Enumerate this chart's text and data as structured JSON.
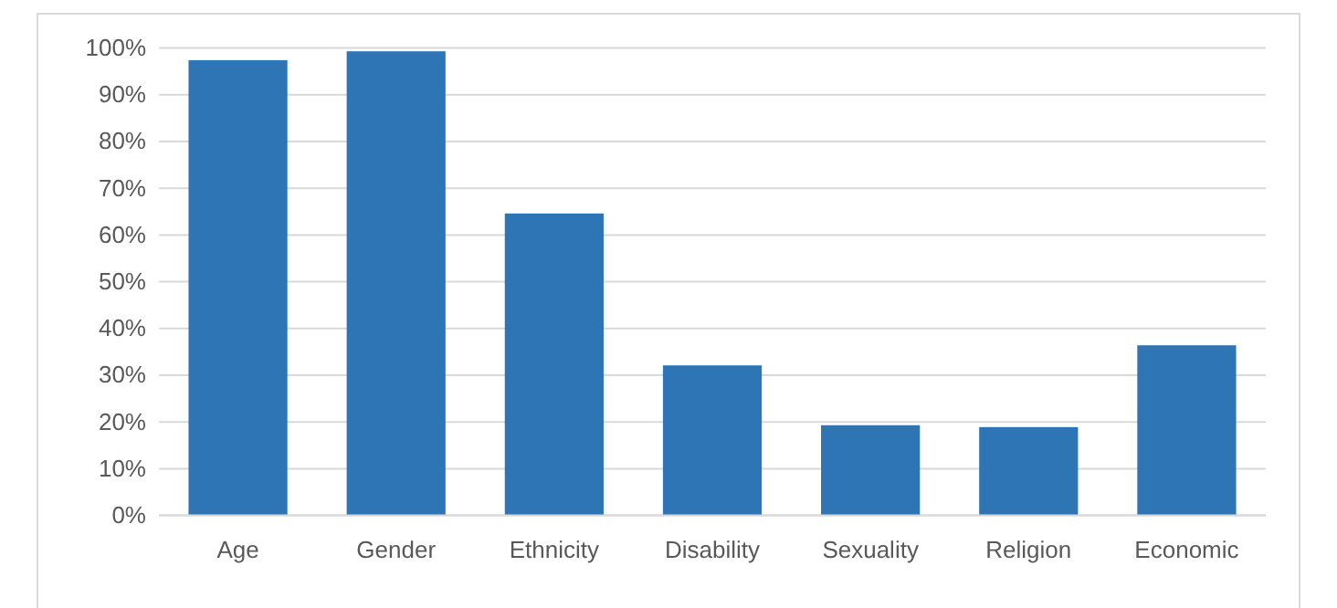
{
  "chart_data": {
    "type": "bar",
    "categories": [
      "Age",
      "Gender",
      "Ethnicity",
      "Disability",
      "Sexuality",
      "Religion",
      "Economic"
    ],
    "values": [
      97.4,
      99.3,
      64.6,
      32.1,
      19.3,
      18.9,
      36.4
    ],
    "color": "#2e75b6",
    "ylim": [
      0,
      100
    ],
    "yticks": [
      {
        "value": 0,
        "label": "0%"
      },
      {
        "value": 10,
        "label": "10%"
      },
      {
        "value": 20,
        "label": "20%"
      },
      {
        "value": 30,
        "label": "30%"
      },
      {
        "value": 40,
        "label": "40%"
      },
      {
        "value": 50,
        "label": "50%"
      },
      {
        "value": 60,
        "label": "60%"
      },
      {
        "value": 70,
        "label": "70%"
      },
      {
        "value": 80,
        "label": "80%"
      },
      {
        "value": 90,
        "label": "90%"
      },
      {
        "value": 100,
        "label": "100%"
      }
    ],
    "grid": "y"
  }
}
